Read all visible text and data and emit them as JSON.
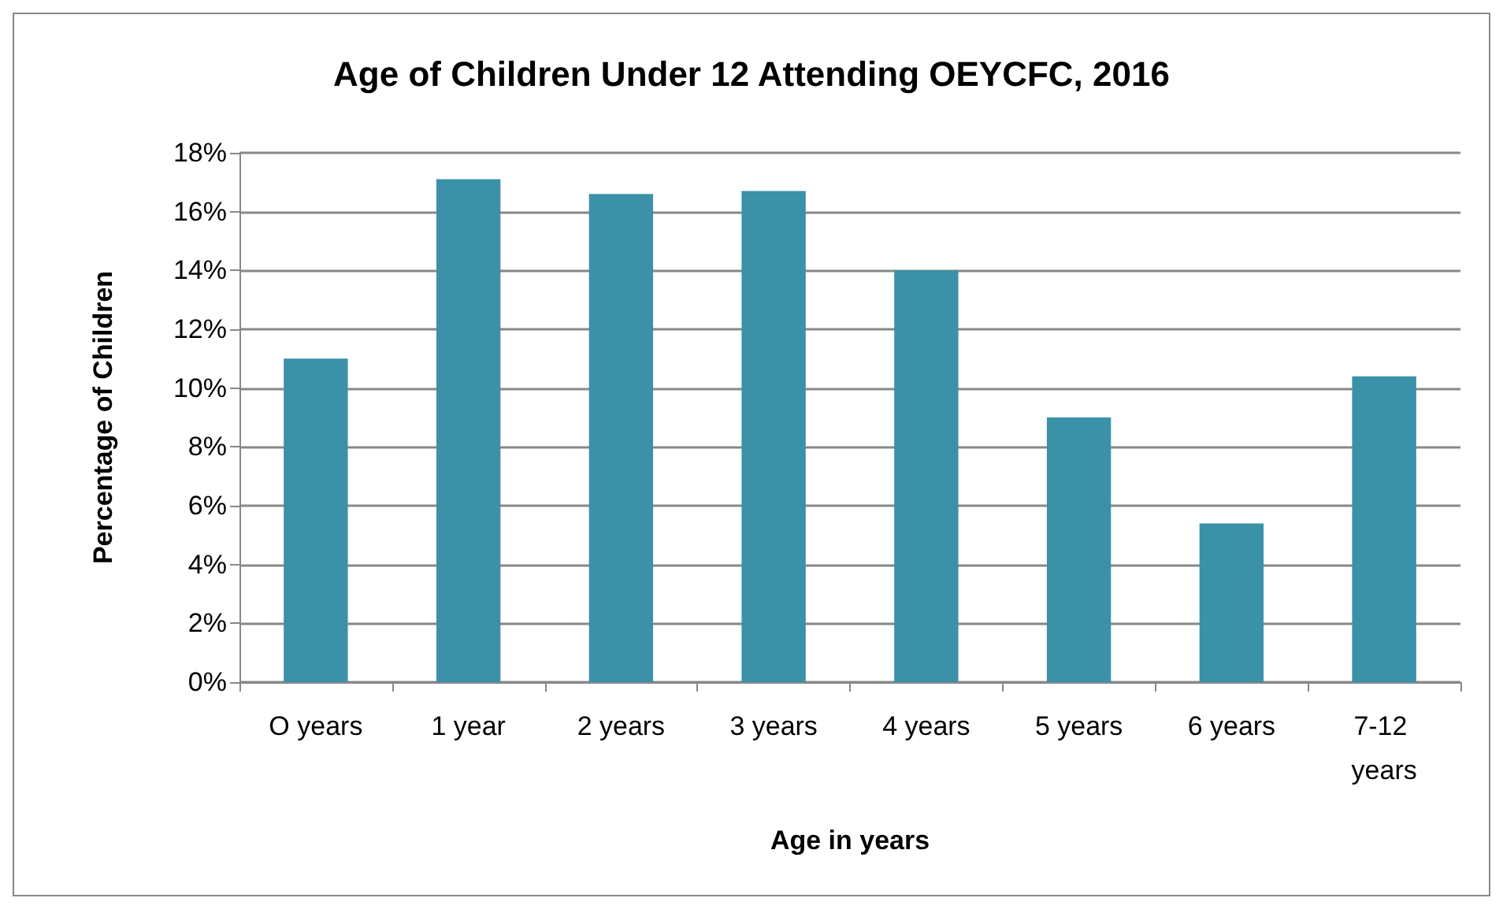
{
  "chart_data": {
    "type": "bar",
    "title": "Age of Children Under 12 Attending OEYCFC, 2016",
    "xlabel": "Age in years",
    "ylabel": "Percentage of Children",
    "categories": [
      "O years",
      "1 year",
      "2 years",
      "3 years",
      "4 years",
      "5 years",
      "6 years",
      "7-12 years"
    ],
    "values": [
      11.0,
      17.1,
      16.6,
      16.7,
      14.0,
      9.0,
      5.4,
      10.4
    ],
    "color": "#3a91a8",
    "ylim": [
      0,
      18
    ],
    "yticks": [
      {
        "value": 0,
        "label": "0%"
      },
      {
        "value": 2,
        "label": "2%"
      },
      {
        "value": 4,
        "label": "4%"
      },
      {
        "value": 6,
        "label": "6%"
      },
      {
        "value": 8,
        "label": "8%"
      },
      {
        "value": 10,
        "label": "10%"
      },
      {
        "value": 12,
        "label": "12%"
      },
      {
        "value": 14,
        "label": "14%"
      },
      {
        "value": 16,
        "label": "16%"
      },
      {
        "value": 18,
        "label": "18%"
      }
    ],
    "grid": "y"
  }
}
